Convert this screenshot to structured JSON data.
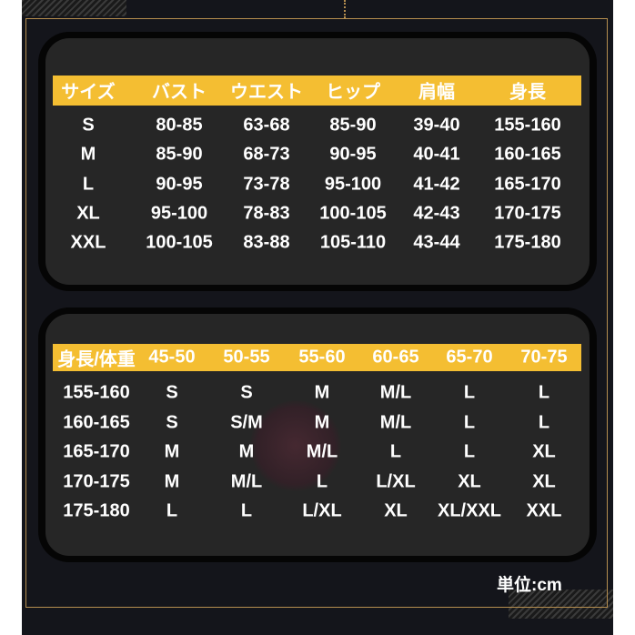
{
  "size_table": {
    "headers": [
      "サイズ",
      "バスト",
      "ウエスト",
      "ヒップ",
      "肩幅",
      "身長"
    ],
    "rows": [
      [
        "S",
        "80-85",
        "63-68",
        "85-90",
        "39-40",
        "155-160"
      ],
      [
        "M",
        "85-90",
        "68-73",
        "90-95",
        "40-41",
        "160-165"
      ],
      [
        "L",
        "90-95",
        "73-78",
        "95-100",
        "41-42",
        "165-170"
      ],
      [
        "XL",
        "95-100",
        "78-83",
        "100-105",
        "42-43",
        "170-175"
      ],
      [
        "XXL",
        "100-105",
        "83-88",
        "105-110",
        "43-44",
        "175-180"
      ]
    ]
  },
  "fit_table": {
    "headers": [
      "身長/体重",
      "45-50",
      "50-55",
      "55-60",
      "60-65",
      "65-70",
      "70-75"
    ],
    "rows": [
      [
        "155-160",
        "S",
        "S",
        "M",
        "M/L",
        "L",
        "L"
      ],
      [
        "160-165",
        "S",
        "S/M",
        "M",
        "M/L",
        "L",
        "L"
      ],
      [
        "165-170",
        "M",
        "M",
        "M/L",
        "L",
        "L",
        "XL"
      ],
      [
        "170-175",
        "M",
        "M/L",
        "L",
        "L/XL",
        "XL",
        "XL"
      ],
      [
        "175-180",
        "L",
        "L",
        "L/XL",
        "XL",
        "XL/XXL",
        "XXL"
      ]
    ]
  },
  "unit_label": "単位:cm",
  "colors": {
    "header": "#f4be32",
    "panel": "#262626",
    "frame": "#b58e4f",
    "background": "#14151b"
  }
}
